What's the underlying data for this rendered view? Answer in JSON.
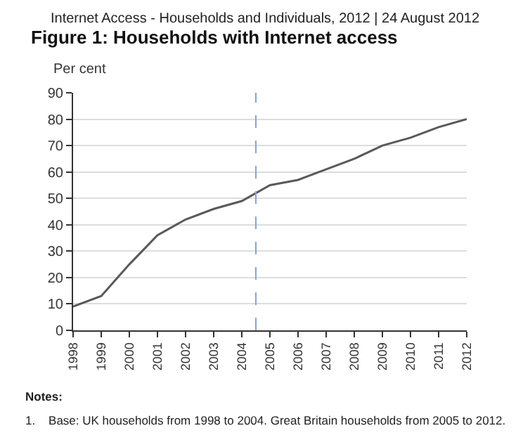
{
  "chart_data": {
    "type": "line",
    "title": "Figure 1: Households with Internet access",
    "ylabel": "Per cent",
    "annotations": [
      "Internet Access - Households and Individuals, 2012 | 24 August 2012",
      "Notes:",
      "1.    Base: UK households from 1998 to 2004. Great Britain households from 2005 to 2012."
    ],
    "x": [
      1998,
      1999,
      2000,
      2001,
      2002,
      2003,
      2004,
      2005,
      2006,
      2007,
      2008,
      2009,
      2010,
      2011,
      2012
    ],
    "series": [
      {
        "color": "#595959",
        "values": [
          9,
          13,
          25,
          36,
          42,
          46,
          49,
          55,
          57,
          61,
          65,
          70,
          73,
          77,
          80
        ]
      }
    ],
    "xlim": [
      1998,
      2012
    ],
    "xticks": [
      1998,
      1999,
      2000,
      2001,
      2002,
      2003,
      2004,
      2005,
      2006,
      2007,
      2008,
      2009,
      2010,
      2011,
      2012
    ],
    "ylim": [
      0,
      90
    ],
    "yticks": [
      0,
      10,
      20,
      30,
      40,
      50,
      60,
      70,
      80,
      90
    ],
    "ref_lines": [
      {
        "axis": "x",
        "value": 2004.5,
        "color": "#7fa7d4",
        "line_style": "dashed"
      }
    ],
    "grid": "y",
    "marker": "none",
    "line_style": "solid"
  }
}
